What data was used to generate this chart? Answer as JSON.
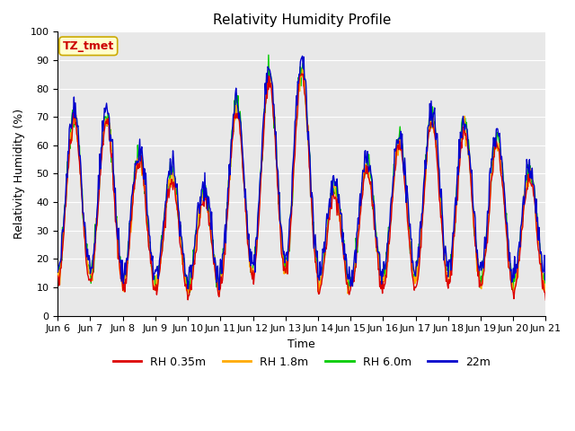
{
  "title": "Relativity Humidity Profile",
  "xlabel": "Time",
  "ylabel": "Relativity Humidity (%)",
  "ylim": [
    0,
    100
  ],
  "xlim": [
    0,
    360
  ],
  "colors": {
    "RH 0.35m": "#dd0000",
    "RH 1.8m": "#ffaa00",
    "RH 6.0m": "#00cc00",
    "22m": "#0000cc"
  },
  "legend_labels": [
    "RH 0.35m",
    "RH 1.8m",
    "RH 6.0m",
    "22m"
  ],
  "annotation_text": "TZ_tmet",
  "annotation_color": "#cc0000",
  "annotation_bg": "#ffffcc",
  "annotation_border": "#ccaa00",
  "plot_bg": "#e8e8e8",
  "fig_bg": "#ffffff",
  "grid_color": "#ffffff",
  "tick_labels": [
    "Jun 6",
    "Jun 7",
    "Jun 8",
    "Jun 9",
    "Jun 10",
    "Jun 11",
    "Jun 12",
    "Jun 13",
    "Jun 14",
    "Jun 15",
    "Jun 16",
    "Jun 17",
    "Jun 18",
    "Jun 19",
    "Jun 20",
    "Jun 21"
  ],
  "tick_positions": [
    0,
    24,
    48,
    72,
    96,
    120,
    144,
    168,
    192,
    216,
    240,
    264,
    288,
    312,
    336,
    360
  ],
  "yticks": [
    0,
    10,
    20,
    30,
    40,
    50,
    60,
    70,
    80,
    90,
    100
  ],
  "linewidth": 1.0,
  "title_fontsize": 11,
  "label_fontsize": 9,
  "tick_fontsize": 8,
  "legend_fontsize": 9
}
